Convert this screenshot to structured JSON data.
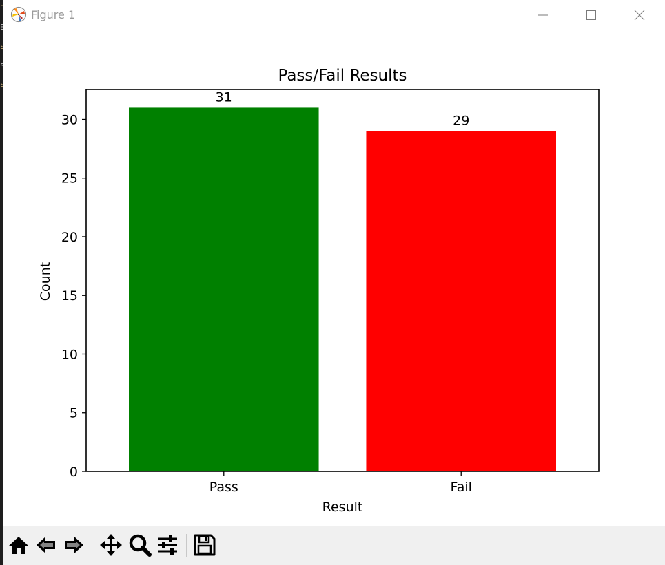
{
  "window": {
    "title": "Figure 1"
  },
  "background_fragments": [
    "-",
    "E",
    "s",
    "s",
    "s"
  ],
  "chart_data": {
    "type": "bar",
    "title": "Pass/Fail Results",
    "xlabel": "Result",
    "ylabel": "Count",
    "categories": [
      "Pass",
      "Fail"
    ],
    "values": [
      31,
      29
    ],
    "colors": [
      "#008000",
      "#ff0000"
    ],
    "data_labels": [
      "31",
      "29"
    ],
    "ylim": [
      0,
      32.55
    ],
    "yticks": [
      0,
      5,
      10,
      15,
      20,
      25,
      30
    ],
    "grid": false,
    "legend": "none"
  },
  "toolbar": {
    "buttons": [
      "home-icon",
      "back-icon",
      "forward-icon",
      "pan-icon",
      "zoom-icon",
      "configure-subplots-icon",
      "save-icon"
    ]
  }
}
